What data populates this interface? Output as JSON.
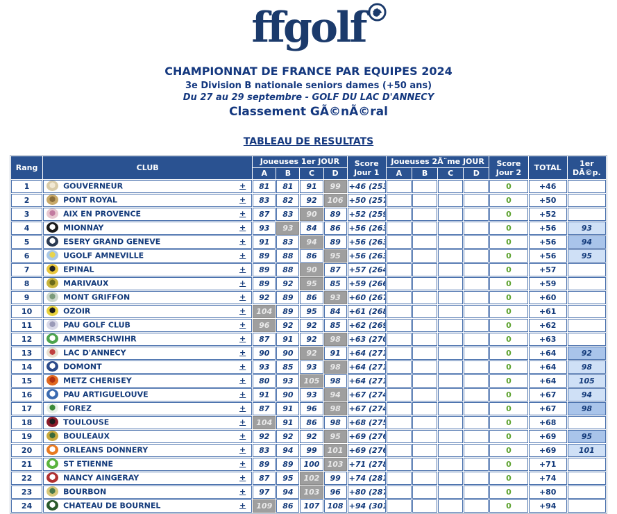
{
  "brand": {
    "logo_text": "ffgolf",
    "logo_mark": "rooster-circle-icon"
  },
  "header": {
    "title": "CHAMPIONNAT DE FRANCE PAR EQUIPES 2024",
    "subtitle1": "3e Division B nationale seniors dames (+50 ans)",
    "subtitle2": "Du 27 au 29 septembre - GOLF DU LAC D'ANNECY",
    "subtitle3": "Classement GÃ©nÃ©ral"
  },
  "section_title": "TABLEAU DE RESULTATS",
  "colors": {
    "navy_text": "#133a7a",
    "header_bg": "#2a5291",
    "cell_border": "#4a71ad",
    "gray_cell_bg": "#9f9f9f",
    "gray_cell_text": "#e9e9e9",
    "green_zero": "#5ca22e",
    "dep_light": "#cfe0f6",
    "dep_medium": "#a9c4ea"
  },
  "table": {
    "headers": {
      "rank": "Rang",
      "club": "CLUB",
      "day1": "Joueuses 1er JOUR",
      "score1": "Score Jour 1",
      "day2": "Joueuses 2Ã¨me JOUR",
      "score2": "Score Jour 2",
      "total": "TOTAL",
      "dep": "1er DÃ©p.",
      "players": [
        "A",
        "B",
        "C",
        "D"
      ]
    },
    "expand_label": "+",
    "rows": [
      {
        "rank": "1",
        "club": "GOUVERNEUR",
        "logo": [
          "#d9cba8",
          "#f2e9d4"
        ],
        "day1": [
          "81",
          "81",
          "91",
          "99"
        ],
        "gray_index": 3,
        "score1": "+46 (253)",
        "score2": "0",
        "total": "+46",
        "dep": "",
        "dep_shade": ""
      },
      {
        "rank": "2",
        "club": "PONT ROYAL",
        "logo": [
          "#c8a96a",
          "#8a6d3b"
        ],
        "day1": [
          "83",
          "82",
          "92",
          "106"
        ],
        "gray_index": 3,
        "score1": "+50 (257)",
        "score2": "0",
        "total": "+50",
        "dep": "",
        "dep_shade": ""
      },
      {
        "rank": "3",
        "club": "AIX EN PROVENCE",
        "logo": [
          "#e8c8d0",
          "#c27ba0"
        ],
        "day1": [
          "87",
          "83",
          "90",
          "89"
        ],
        "gray_index": 2,
        "score1": "+52 (259)",
        "score2": "0",
        "total": "+52",
        "dep": "",
        "dep_shade": ""
      },
      {
        "rank": "4",
        "club": "MIONNAY",
        "logo": [
          "#1a1a1a",
          "#ffffff"
        ],
        "day1": [
          "93",
          "93",
          "84",
          "86"
        ],
        "gray_index": 1,
        "score1": "+56 (263)",
        "score2": "0",
        "total": "+56",
        "dep": "93",
        "dep_shade": "light"
      },
      {
        "rank": "5",
        "club": "ESERY GRAND GENEVE",
        "logo": [
          "#2b3a52",
          "#ffffff"
        ],
        "day1": [
          "91",
          "83",
          "94",
          "89"
        ],
        "gray_index": 2,
        "score1": "+56 (263)",
        "score2": "0",
        "total": "+56",
        "dep": "94",
        "dep_shade": "medium"
      },
      {
        "rank": "6",
        "club": "UGOLF AMNEVILLE",
        "logo": [
          "#aac8e8",
          "#e8d44d"
        ],
        "day1": [
          "89",
          "88",
          "86",
          "95"
        ],
        "gray_index": 3,
        "score1": "+56 (263)",
        "score2": "0",
        "total": "+56",
        "dep": "95",
        "dep_shade": "light"
      },
      {
        "rank": "7",
        "club": "EPINAL",
        "logo": [
          "#e8c63d",
          "#222222"
        ],
        "day1": [
          "89",
          "88",
          "90",
          "87"
        ],
        "gray_index": 2,
        "score1": "+57 (264)",
        "score2": "0",
        "total": "+57",
        "dep": "",
        "dep_shade": ""
      },
      {
        "rank": "8",
        "club": "MARIVAUX",
        "logo": [
          "#c8b43d",
          "#6b6b1a"
        ],
        "day1": [
          "89",
          "92",
          "95",
          "85"
        ],
        "gray_index": 2,
        "score1": "+59 (266)",
        "score2": "0",
        "total": "+59",
        "dep": "",
        "dep_shade": ""
      },
      {
        "rank": "9",
        "club": "MONT GRIFFON",
        "logo": [
          "#cdd8cd",
          "#7a9a7a"
        ],
        "day1": [
          "92",
          "89",
          "86",
          "93"
        ],
        "gray_index": 3,
        "score1": "+60 (267)",
        "score2": "0",
        "total": "+60",
        "dep": "",
        "dep_shade": ""
      },
      {
        "rank": "10",
        "club": "OZOIR",
        "logo": [
          "#e8d23d",
          "#1a1a1a"
        ],
        "day1": [
          "104",
          "89",
          "95",
          "84"
        ],
        "gray_index": 0,
        "score1": "+61 (268)",
        "score2": "0",
        "total": "+61",
        "dep": "",
        "dep_shade": ""
      },
      {
        "rank": "11",
        "club": "PAU GOLF CLUB",
        "logo": [
          "#d8d8e8",
          "#9a9ab8"
        ],
        "day1": [
          "96",
          "92",
          "92",
          "85"
        ],
        "gray_index": 0,
        "score1": "+62 (269)",
        "score2": "0",
        "total": "+62",
        "dep": "",
        "dep_shade": ""
      },
      {
        "rank": "12",
        "club": "AMMERSCHWIHR",
        "logo": [
          "#4da44d",
          "#ffffff"
        ],
        "day1": [
          "87",
          "91",
          "92",
          "98"
        ],
        "gray_index": 3,
        "score1": "+63 (270)",
        "score2": "0",
        "total": "+63",
        "dep": "",
        "dep_shade": ""
      },
      {
        "rank": "13",
        "club": "LAC D'ANNECY",
        "logo": [
          "#e8e0d0",
          "#c04040"
        ],
        "day1": [
          "90",
          "90",
          "92",
          "91"
        ],
        "gray_index": 2,
        "score1": "+64 (271)",
        "score2": "0",
        "total": "+64",
        "dep": "92",
        "dep_shade": "medium"
      },
      {
        "rank": "14",
        "club": "DOMONT",
        "logo": [
          "#2b4a8a",
          "#ffffff"
        ],
        "day1": [
          "93",
          "85",
          "93",
          "98"
        ],
        "gray_index": 3,
        "score1": "+64 (271)",
        "score2": "0",
        "total": "+64",
        "dep": "98",
        "dep_shade": "light"
      },
      {
        "rank": "15",
        "club": "METZ CHERISEY",
        "logo": [
          "#e06820",
          "#b03010"
        ],
        "day1": [
          "80",
          "93",
          "105",
          "98"
        ],
        "gray_index": 2,
        "score1": "+64 (271)",
        "score2": "0",
        "total": "+64",
        "dep": "105",
        "dep_shade": "light"
      },
      {
        "rank": "16",
        "club": "PAU ARTIGUELOUVE",
        "logo": [
          "#3a6ab0",
          "#ffffff"
        ],
        "day1": [
          "91",
          "90",
          "93",
          "94"
        ],
        "gray_index": 3,
        "score1": "+67 (274)",
        "score2": "0",
        "total": "+67",
        "dep": "94",
        "dep_shade": "light"
      },
      {
        "rank": "17",
        "club": "FOREZ",
        "logo": [
          "#e8f0e8",
          "#3a8a3a"
        ],
        "day1": [
          "87",
          "91",
          "96",
          "98"
        ],
        "gray_index": 3,
        "score1": "+67 (274)",
        "score2": "0",
        "total": "+67",
        "dep": "98",
        "dep_shade": "medium"
      },
      {
        "rank": "18",
        "club": "TOULOUSE",
        "logo": [
          "#8a1a2a",
          "#1a1a1a"
        ],
        "day1": [
          "104",
          "91",
          "86",
          "98"
        ],
        "gray_index": 0,
        "score1": "+68 (275)",
        "score2": "0",
        "total": "+68",
        "dep": "",
        "dep_shade": ""
      },
      {
        "rank": "19",
        "club": "BOULEAUX",
        "logo": [
          "#c8a83d",
          "#3a6a3a"
        ],
        "day1": [
          "92",
          "92",
          "92",
          "95"
        ],
        "gray_index": 3,
        "score1": "+69 (276)",
        "score2": "0",
        "total": "+69",
        "dep": "95",
        "dep_shade": "medium"
      },
      {
        "rank": "20",
        "club": "ORLEANS DONNERY",
        "logo": [
          "#e87a20",
          "#ffffff"
        ],
        "day1": [
          "83",
          "94",
          "99",
          "101"
        ],
        "gray_index": 3,
        "score1": "+69 (276)",
        "score2": "0",
        "total": "+69",
        "dep": "101",
        "dep_shade": "light"
      },
      {
        "rank": "21",
        "club": "ST ETIENNE",
        "logo": [
          "#5ab43d",
          "#ffffff"
        ],
        "day1": [
          "89",
          "89",
          "100",
          "103"
        ],
        "gray_index": 3,
        "score1": "+71 (278)",
        "score2": "0",
        "total": "+71",
        "dep": "",
        "dep_shade": ""
      },
      {
        "rank": "22",
        "club": "NANCY AINGERAY",
        "logo": [
          "#b03030",
          "#ffffff"
        ],
        "day1": [
          "87",
          "95",
          "102",
          "99"
        ],
        "gray_index": 2,
        "score1": "+74 (281)",
        "score2": "0",
        "total": "+74",
        "dep": "",
        "dep_shade": ""
      },
      {
        "rank": "23",
        "club": "BOURBON",
        "logo": [
          "#d8c87a",
          "#4a7a4a"
        ],
        "day1": [
          "97",
          "94",
          "103",
          "96"
        ],
        "gray_index": 2,
        "score1": "+80 (287)",
        "score2": "0",
        "total": "+80",
        "dep": "",
        "dep_shade": ""
      },
      {
        "rank": "24",
        "club": "CHATEAU DE BOURNEL",
        "logo": [
          "#2a5a2a",
          "#ffffff"
        ],
        "day1": [
          "109",
          "86",
          "107",
          "108"
        ],
        "gray_index": 0,
        "score1": "+94 (301)",
        "score2": "0",
        "total": "+94",
        "dep": "",
        "dep_shade": ""
      }
    ]
  }
}
